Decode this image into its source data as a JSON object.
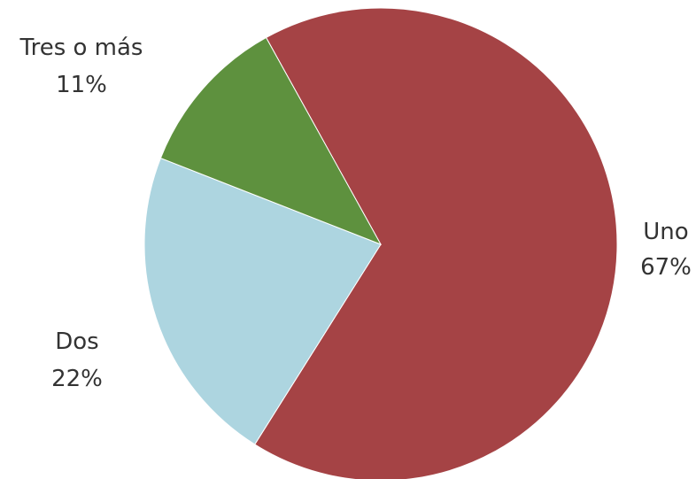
{
  "chart_data": {
    "type": "pie",
    "title": "",
    "slices": [
      {
        "label": "Uno",
        "value": 67,
        "value_label": "67%",
        "color": "#a54345"
      },
      {
        "label": "Dos",
        "value": 22,
        "value_label": "22%",
        "color": "#add5e0"
      },
      {
        "label": "Tres o más",
        "value": 11,
        "value_label": "11%",
        "color": "#5e913e"
      }
    ],
    "legend": "none",
    "labels_position": "outside"
  }
}
